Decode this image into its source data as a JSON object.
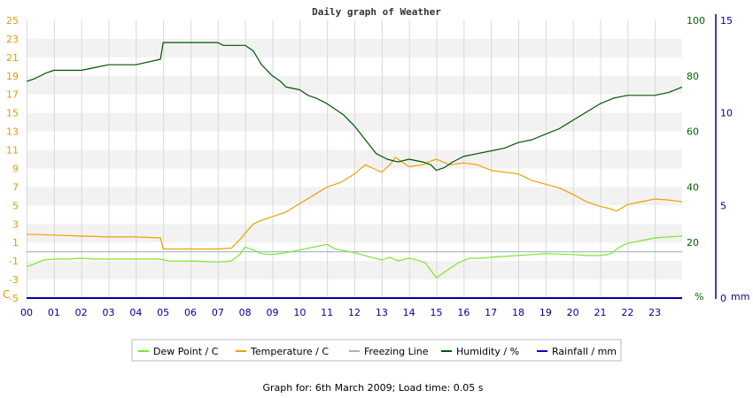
{
  "chart_data": {
    "type": "line",
    "title": "Daily graph of Weather",
    "footer": "Graph for: 6th March 2009; Load time: 0.05 s",
    "x_ticks": [
      "00",
      "01",
      "02",
      "03",
      "04",
      "05",
      "06",
      "07",
      "08",
      "09",
      "10",
      "11",
      "12",
      "13",
      "14",
      "15",
      "16",
      "17",
      "18",
      "19",
      "20",
      "21",
      "22",
      "23"
    ],
    "x_range_hours": [
      0,
      24
    ],
    "axes": {
      "left": {
        "unit": "C",
        "ticks": [
          "25",
          "23",
          "21",
          "19",
          "17",
          "15",
          "13",
          "11",
          "9",
          "7",
          "5",
          "3",
          "1",
          "-1",
          "-3",
          "-5"
        ],
        "range": [
          -5,
          25
        ],
        "color": "#e69a00"
      },
      "middle": {
        "unit": "%",
        "ticks": [
          "100",
          "80",
          "60",
          "40",
          "20"
        ],
        "range": [
          0,
          100
        ],
        "color": "#006400"
      },
      "right": {
        "unit": "mm",
        "ticks": [
          "15",
          "10",
          "5",
          "0"
        ],
        "range": [
          0,
          15
        ],
        "color": "#000099"
      }
    },
    "grid": true,
    "legend_position": "bottom-center",
    "series": [
      {
        "name": "Dew Point / C",
        "axis": "left",
        "color": "#7ee62c",
        "points": [
          [
            0,
            -1.6
          ],
          [
            0.3,
            -1.3
          ],
          [
            0.6,
            -0.9
          ],
          [
            1,
            -0.8
          ],
          [
            1.5,
            -0.8
          ],
          [
            2,
            -0.7
          ],
          [
            2.5,
            -0.8
          ],
          [
            3,
            -0.8
          ],
          [
            4,
            -0.8
          ],
          [
            4.9,
            -0.8
          ],
          [
            5.2,
            -1.0
          ],
          [
            6,
            -1.0
          ],
          [
            7,
            -1.1
          ],
          [
            7.5,
            -1.0
          ],
          [
            7.8,
            -0.3
          ],
          [
            8,
            0.5
          ],
          [
            8.3,
            0.2
          ],
          [
            8.6,
            -0.2
          ],
          [
            9,
            -0.3
          ],
          [
            9.5,
            -0.1
          ],
          [
            10,
            0.2
          ],
          [
            10.5,
            0.5
          ],
          [
            11,
            0.8
          ],
          [
            11.3,
            0.3
          ],
          [
            12,
            -0.1
          ],
          [
            12.5,
            -0.5
          ],
          [
            13,
            -0.9
          ],
          [
            13.3,
            -0.6
          ],
          [
            13.6,
            -1.0
          ],
          [
            14,
            -0.7
          ],
          [
            14.3,
            -0.9
          ],
          [
            14.6,
            -1.2
          ],
          [
            14.8,
            -2.0
          ],
          [
            15,
            -2.8
          ],
          [
            15.4,
            -2.0
          ],
          [
            15.8,
            -1.2
          ],
          [
            16.2,
            -0.7
          ],
          [
            16.6,
            -0.7
          ],
          [
            17,
            -0.6
          ],
          [
            18,
            -0.4
          ],
          [
            18.5,
            -0.3
          ],
          [
            19,
            -0.2
          ],
          [
            20,
            -0.3
          ],
          [
            20.5,
            -0.4
          ],
          [
            21,
            -0.4
          ],
          [
            21.4,
            -0.2
          ],
          [
            21.7,
            0.5
          ],
          [
            22,
            0.9
          ],
          [
            22.5,
            1.2
          ],
          [
            23,
            1.5
          ],
          [
            23.5,
            1.6
          ],
          [
            24,
            1.7
          ]
        ]
      },
      {
        "name": "Temperature / C",
        "axis": "left",
        "color": "#f0a000",
        "points": [
          [
            0,
            1.9
          ],
          [
            1,
            1.8
          ],
          [
            2,
            1.7
          ],
          [
            3,
            1.6
          ],
          [
            4,
            1.6
          ],
          [
            4.9,
            1.5
          ],
          [
            5,
            0.3
          ],
          [
            6,
            0.3
          ],
          [
            7,
            0.3
          ],
          [
            7.5,
            0.4
          ],
          [
            7.8,
            1.3
          ],
          [
            8,
            2.0
          ],
          [
            8.3,
            3.0
          ],
          [
            8.6,
            3.4
          ],
          [
            9,
            3.8
          ],
          [
            9.5,
            4.3
          ],
          [
            10,
            5.2
          ],
          [
            10.5,
            6.1
          ],
          [
            11,
            7.0
          ],
          [
            11.5,
            7.5
          ],
          [
            12,
            8.4
          ],
          [
            12.4,
            9.4
          ],
          [
            12.7,
            9.0
          ],
          [
            13,
            8.6
          ],
          [
            13.3,
            9.4
          ],
          [
            13.5,
            10.2
          ],
          [
            13.8,
            9.6
          ],
          [
            14,
            9.2
          ],
          [
            14.5,
            9.4
          ],
          [
            14.8,
            9.8
          ],
          [
            15,
            10.0
          ],
          [
            15.5,
            9.4
          ],
          [
            16,
            9.6
          ],
          [
            16.5,
            9.4
          ],
          [
            17,
            8.8
          ],
          [
            17.5,
            8.6
          ],
          [
            18,
            8.4
          ],
          [
            18.5,
            7.7
          ],
          [
            19,
            7.3
          ],
          [
            19.5,
            6.9
          ],
          [
            20,
            6.2
          ],
          [
            20.5,
            5.4
          ],
          [
            21,
            4.9
          ],
          [
            21.3,
            4.7
          ],
          [
            21.6,
            4.4
          ],
          [
            22,
            5.1
          ],
          [
            22.5,
            5.4
          ],
          [
            23,
            5.7
          ],
          [
            23.5,
            5.6
          ],
          [
            24,
            5.4
          ]
        ]
      },
      {
        "name": "Freezing Line",
        "axis": "left",
        "color": "#a0b4c8",
        "points": [
          [
            0,
            0
          ],
          [
            24,
            0
          ]
        ]
      },
      {
        "name": "Humidity / %",
        "axis": "middle",
        "color": "#005500",
        "points": [
          [
            0,
            78
          ],
          [
            0.3,
            79
          ],
          [
            0.7,
            81
          ],
          [
            1,
            82
          ],
          [
            2,
            82
          ],
          [
            2.5,
            83
          ],
          [
            3,
            84
          ],
          [
            4,
            84
          ],
          [
            4.9,
            86
          ],
          [
            5,
            92
          ],
          [
            5.5,
            92
          ],
          [
            6,
            92
          ],
          [
            7,
            92
          ],
          [
            7.2,
            91
          ],
          [
            8,
            91
          ],
          [
            8.3,
            89
          ],
          [
            8.6,
            84
          ],
          [
            9,
            80
          ],
          [
            9.3,
            78
          ],
          [
            9.5,
            76
          ],
          [
            10,
            75
          ],
          [
            10.3,
            73
          ],
          [
            10.6,
            72
          ],
          [
            11,
            70
          ],
          [
            11.3,
            68
          ],
          [
            11.6,
            66
          ],
          [
            12,
            62
          ],
          [
            12.4,
            57
          ],
          [
            12.8,
            52
          ],
          [
            13.2,
            50
          ],
          [
            13.6,
            49
          ],
          [
            14,
            50
          ],
          [
            14.5,
            49
          ],
          [
            14.8,
            48
          ],
          [
            15,
            46
          ],
          [
            15.3,
            47
          ],
          [
            15.6,
            49
          ],
          [
            16,
            51
          ],
          [
            16.5,
            52
          ],
          [
            17,
            53
          ],
          [
            17.5,
            54
          ],
          [
            18,
            56
          ],
          [
            18.5,
            57
          ],
          [
            19,
            59
          ],
          [
            19.5,
            61
          ],
          [
            20,
            64
          ],
          [
            20.5,
            67
          ],
          [
            21,
            70
          ],
          [
            21.5,
            72
          ],
          [
            22,
            73
          ],
          [
            22.5,
            73
          ],
          [
            23,
            73
          ],
          [
            23.5,
            74
          ],
          [
            24,
            76
          ]
        ]
      },
      {
        "name": "Rainfall / mm",
        "axis": "right",
        "color": "#0000cc",
        "points": [
          [
            0,
            0
          ],
          [
            24,
            0
          ]
        ]
      }
    ]
  }
}
